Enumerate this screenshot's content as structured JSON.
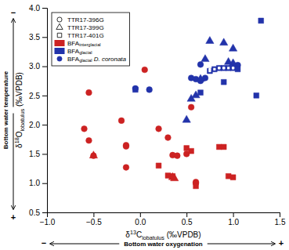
{
  "chart_data": {
    "type": "scatter",
    "title": "",
    "xlabel": "δ13Clobatulus (‰VPDB)",
    "ylabel": "δ18Olobatulus (‰VPDB)",
    "annotations": [
      "Bottom water temperature",
      "−",
      "+",
      "Bottom water oxygenation",
      "−",
      "+"
    ],
    "xlim": [
      -1,
      1.5
    ],
    "ylim": [
      0.5,
      4.0
    ],
    "xticks": [
      {
        "value": -1,
        "label": "−1.0"
      },
      {
        "value": -0.5,
        "label": "−0.5"
      },
      {
        "value": 0,
        "label": "0.0"
      },
      {
        "value": 0.5,
        "label": "0.5"
      },
      {
        "value": 1,
        "label": "1.0"
      },
      {
        "value": 1.5,
        "label": "1.5"
      }
    ],
    "yticks": [
      0.5,
      {
        "value": 1.0,
        "label": "1.0"
      },
      1.5,
      {
        "value": 2.0,
        "label": "2.0"
      },
      2.5,
      {
        "value": 3.0,
        "label": "3.0"
      },
      3.5,
      {
        "value": 4.0,
        "label": "4.0"
      }
    ],
    "grid": false,
    "legend": "upper left",
    "legend_entries": [
      {
        "label": "TTR17-396G",
        "marker": "circle-open",
        "color": "black"
      },
      {
        "label": "TTR17-399G",
        "marker": "triangle-open",
        "color": "black"
      },
      {
        "label": "TTR17-401G",
        "marker": "square-open",
        "color": "black"
      },
      {
        "label": "BFAinterglacial",
        "marker": "patch",
        "color": "#cc2222"
      },
      {
        "label": "BFAglacial",
        "marker": "patch",
        "color": "#2233aa"
      },
      {
        "label": "BFAglacial D. coronata",
        "marker": "circle",
        "color": "#2233aa"
      }
    ],
    "series": [
      {
        "marker": "circle",
        "color": "#cc2222",
        "x": [
          -0.55,
          -0.6,
          -0.55,
          -0.5,
          -0.2,
          -0.15,
          -0.15,
          -0.15,
          0.05,
          0.2,
          0.3,
          0.35,
          0.4,
          0.5,
          0.55,
          0.6,
          0.6
        ],
        "values": [
          2.55,
          1.93,
          1.73,
          1.47,
          2.07,
          1.65,
          1.63,
          1.27,
          2.94,
          1.93,
          1.78,
          1.48,
          1.47,
          1.5,
          2.3,
          1.02,
          1.0
        ]
      },
      {
        "marker": "triangle",
        "color": "#cc2222",
        "x": [
          -0.5,
          0.35,
          0.37
        ],
        "values": [
          1.47,
          1.1,
          1.08
        ]
      },
      {
        "marker": "square",
        "color": "#cc2222",
        "x": [
          0.2,
          0.3,
          0.35,
          0.5,
          0.55,
          0.6,
          0.85,
          0.9,
          0.95,
          1.0
        ],
        "values": [
          1.3,
          1.13,
          1.12,
          1.6,
          1.55,
          0.95,
          1.62,
          1.62,
          1.12,
          1.1
        ]
      },
      {
        "marker": "circle",
        "color": "#2233aa",
        "x": [
          -0.05,
          0.1,
          0.55,
          0.6,
          0.65,
          0.65,
          0.7,
          1.05
        ],
        "values": [
          2.62,
          2.6,
          2.8,
          2.78,
          2.75,
          3.03,
          2.8,
          3.02
        ]
      },
      {
        "marker": "triangle",
        "color": "#2233aa",
        "x": [
          0.5,
          0.55,
          0.6,
          0.65,
          0.7,
          0.75,
          0.9,
          0.95,
          1.0,
          1.0
        ],
        "values": [
          2.08,
          2.44,
          2.5,
          2.78,
          3.12,
          3.43,
          3.4,
          3.07,
          3.3,
          3.05
        ]
      },
      {
        "marker": "square",
        "color": "#2233aa",
        "x": [
          -0.05,
          0.65,
          0.75,
          0.8,
          0.85,
          0.9,
          0.9,
          0.95,
          1.0,
          1.05,
          1.25,
          1.3
        ],
        "values": [
          2.6,
          2.55,
          2.92,
          2.95,
          2.97,
          2.97,
          2.73,
          2.97,
          2.97,
          2.95,
          2.5,
          3.78
        ]
      },
      {
        "marker": "small-circle",
        "color": "white",
        "x": [
          0.75,
          0.85,
          0.9,
          1.0
        ],
        "values": [
          2.95,
          2.97,
          2.97,
          2.97
        ]
      },
      {
        "marker": "small-square",
        "color": "white",
        "x": [
          0.75,
          0.8,
          0.85,
          0.9,
          0.95,
          1.0
        ],
        "values": [
          2.92,
          2.95,
          2.97,
          2.97,
          2.97,
          2.97
        ]
      }
    ]
  }
}
